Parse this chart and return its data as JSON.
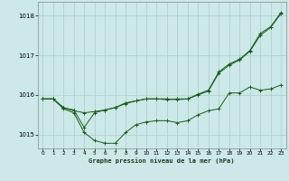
{
  "title": "",
  "xlabel": "Graphe pression niveau de la mer (hPa)",
  "bg_color": "#cce8e8",
  "grid_color": "#aacccc",
  "line_color": "#1a5c1a",
  "ylim": [
    1014.65,
    1018.35
  ],
  "xlim": [
    -0.5,
    23.5
  ],
  "yticks": [
    1015,
    1016,
    1017,
    1018
  ],
  "xticks": [
    0,
    1,
    2,
    3,
    4,
    5,
    6,
    7,
    8,
    9,
    10,
    11,
    12,
    13,
    14,
    15,
    16,
    17,
    18,
    19,
    20,
    21,
    22,
    23
  ],
  "line1": {
    "x": [
      0,
      1,
      2,
      3,
      4,
      5,
      6,
      7,
      8,
      9,
      10,
      11,
      12,
      13,
      14,
      15,
      16,
      17,
      18,
      19,
      20,
      21,
      22,
      23
    ],
    "y": [
      1015.9,
      1015.9,
      1015.65,
      1015.55,
      1015.05,
      1014.85,
      1014.78,
      1014.78,
      1015.05,
      1015.25,
      1015.32,
      1015.35,
      1015.35,
      1015.3,
      1015.35,
      1015.5,
      1015.6,
      1015.65,
      1016.05,
      1016.05,
      1016.2,
      1016.12,
      1016.15,
      1016.25
    ]
  },
  "line2": {
    "x": [
      0,
      1,
      2,
      3,
      4,
      5,
      6,
      7,
      8,
      9,
      10,
      11,
      12,
      13,
      14,
      15,
      16,
      17,
      18,
      19,
      20,
      21,
      22,
      23
    ],
    "y": [
      1015.9,
      1015.9,
      1015.68,
      1015.6,
      1015.55,
      1015.58,
      1015.62,
      1015.68,
      1015.78,
      1015.85,
      1015.9,
      1015.9,
      1015.9,
      1015.88,
      1015.9,
      1016.0,
      1016.1,
      1016.55,
      1016.75,
      1016.88,
      1017.1,
      1017.5,
      1017.7,
      1018.05
    ]
  },
  "line3": {
    "x": [
      0,
      1,
      2,
      3,
      4,
      5,
      6,
      7,
      8,
      9,
      10,
      11,
      12,
      13,
      14,
      15,
      16,
      17,
      18,
      19,
      20,
      21,
      22,
      23
    ],
    "y": [
      1015.9,
      1015.9,
      1015.68,
      1015.62,
      1015.18,
      1015.55,
      1015.62,
      1015.68,
      1015.8,
      1015.85,
      1015.9,
      1015.9,
      1015.88,
      1015.9,
      1015.9,
      1016.02,
      1016.12,
      1016.58,
      1016.78,
      1016.9,
      1017.12,
      1017.55,
      1017.72,
      1018.08
    ]
  }
}
